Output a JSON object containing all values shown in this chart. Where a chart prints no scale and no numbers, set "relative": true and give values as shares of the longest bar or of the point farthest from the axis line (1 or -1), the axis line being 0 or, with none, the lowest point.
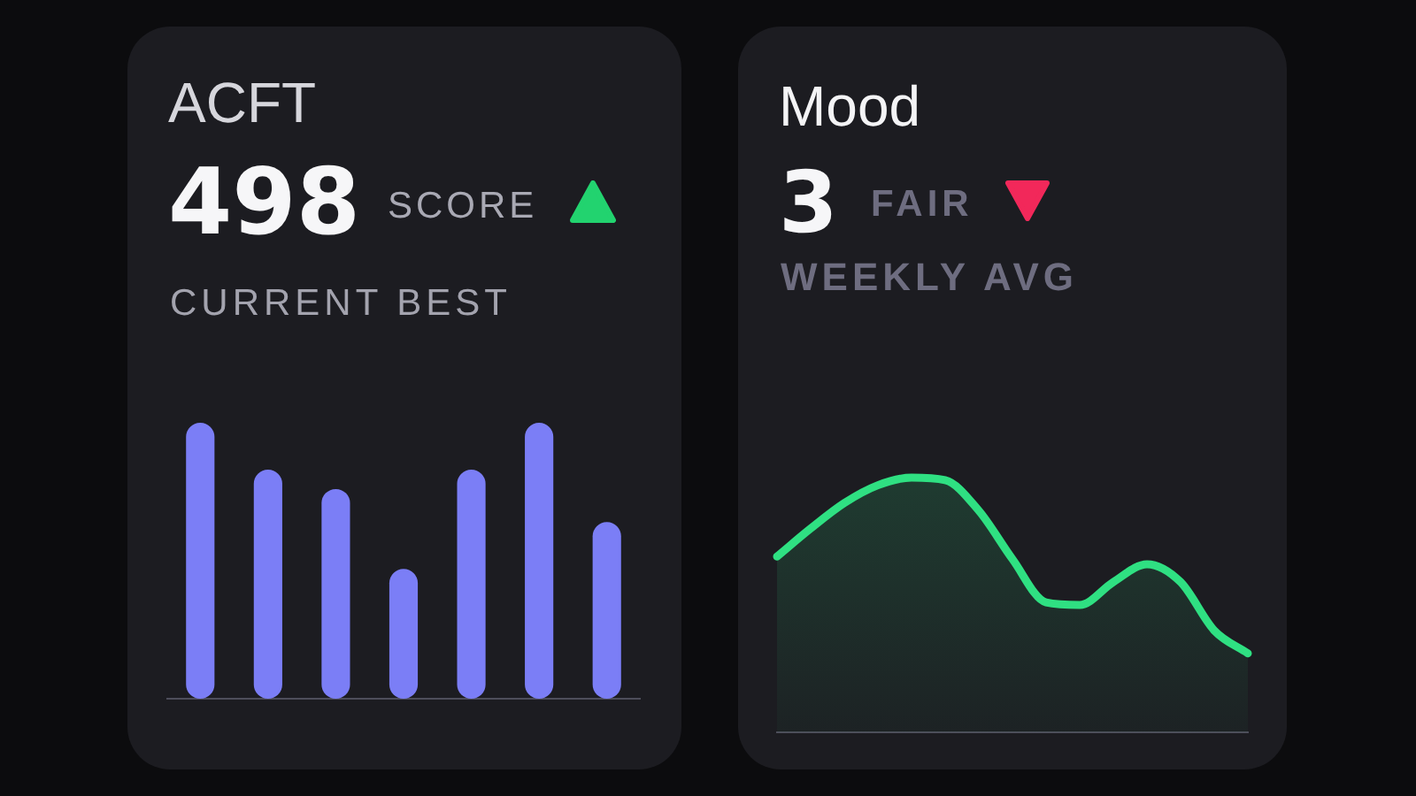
{
  "chart_data": [
    {
      "type": "bar",
      "title": "ACFT",
      "annotations": [
        "498",
        "SCORE"
      ],
      "subtitle": "CURRENT BEST",
      "categories": [
        null,
        null,
        null,
        null,
        null,
        null,
        null
      ],
      "values": [
        1,
        0.83,
        0.76,
        0.47,
        0.83,
        1,
        0.64
      ],
      "color": "#7b7ef6",
      "relative": true
    },
    {
      "type": "area",
      "title": "Mood",
      "annotations": [
        "3",
        "FAIR"
      ],
      "subtitle": "WEEKLY AVG",
      "categories": [
        null,
        null,
        null,
        null,
        null,
        null,
        null,
        null,
        null,
        null,
        null,
        null,
        null,
        null,
        null
      ],
      "values": [
        0.69,
        0.8,
        0.9,
        0.97,
        1,
        0.99,
        0.87,
        0.68,
        0.51,
        0.5,
        0.59,
        0.66,
        0.59,
        0.4,
        0.31
      ],
      "color": "#2fe082",
      "relative": true,
      "marker": "none",
      "line_style": "solid"
    }
  ]
}
